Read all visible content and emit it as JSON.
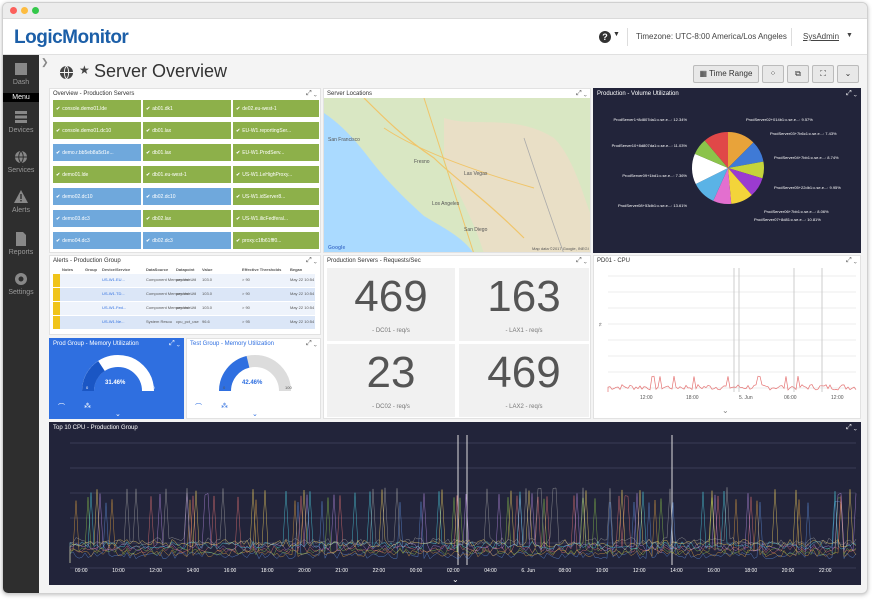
{
  "app": {
    "logo_part1": "Logic",
    "logo_part2": "Monitor",
    "timezone": "Timezone: UTC-8:00 America/Los Angeles",
    "user": "SysAdmin"
  },
  "sidebar": {
    "items": [
      {
        "label": "Dash",
        "icon": "dashboard-icon"
      },
      {
        "label": "Devices",
        "icon": "server-icon"
      },
      {
        "label": "Services",
        "icon": "globe-icon"
      },
      {
        "label": "Alerts",
        "icon": "warning-icon"
      },
      {
        "label": "Reports",
        "icon": "document-icon"
      },
      {
        "label": "Settings",
        "icon": "gear-icon"
      }
    ],
    "menu_label": "Menu"
  },
  "page": {
    "title": "Server Overview",
    "toolbar": {
      "time_range": "Time Range"
    }
  },
  "widgets": {
    "overview": {
      "title": "Overview - Production Servers",
      "rows": [
        [
          "console.demo01.lde",
          "ab01.dk1",
          "de02.eu-west-1"
        ],
        [
          "console.demo01.dc10",
          "db01.lax",
          "EU-W1.reportingSer..."
        ],
        [
          "demo.r.bb5eb8a5d1e...",
          "db01.lax",
          "EU-W1.ProdServ..."
        ],
        [
          "demo01.lde",
          "db01.eu-west-1",
          "US-W1.LeHighProxy..."
        ],
        [
          "demo02.dc10",
          "db02.dc10",
          "US-W1.idServer8..."
        ],
        [
          "demo03.dc3",
          "db02.lax",
          "US-W1.ilicFedferal..."
        ],
        [
          "demo04.dc3",
          "db02.dc3",
          "proxy.c1fb61fff0..."
        ]
      ]
    },
    "map": {
      "title": "Server Locations",
      "cities": [
        "San Francisco",
        "Fresno",
        "Las Vegas",
        "Los Angeles",
        "San Diego"
      ],
      "footer": "Map data ©2017 Google, INEGI",
      "brand": "Google"
    },
    "volume": {
      "title": "Production - Volume Utilization",
      "labels_left": [
        "ProdServer1+8d807da1:c.se.e...: 12.34%",
        "ProdServer10+8d807da1:c.se.e...: 11.03%",
        "ProdServer09+1bd1:c.se.e...: 7.36%",
        "ProdServer08+53db1:c.se.e...: 13.61%"
      ],
      "labels_right": [
        "ProdServer02+014b1:c.se.e...: 9.57%",
        "ProdServer03+7b6c1:c.se.e...: 7.43%",
        "ProdServer04+7bb1:c.se.e...: 8.74%",
        "ProdServer05+22db1:c.se.e...: 9.95%",
        "ProdServer06+7bb1:c.se.e...: 8.06%",
        "ProdServer07+8d81:c.se.e...: 10.81%"
      ],
      "slices": [
        {
          "value": 12.34,
          "color": "#e8a33a"
        },
        {
          "value": 9.57,
          "color": "#3f7ad6"
        },
        {
          "value": 7.43,
          "color": "#c5d43b"
        },
        {
          "value": 8.74,
          "color": "#9b3bd1"
        },
        {
          "value": 9.95,
          "color": "#f3d43a"
        },
        {
          "value": 8.06,
          "color": "#e36fcf"
        },
        {
          "value": 10.81,
          "color": "#5ab3e6"
        },
        {
          "value": 13.61,
          "color": "#ffffff"
        },
        {
          "value": 7.36,
          "color": "#8bc34a"
        },
        {
          "value": 11.03,
          "color": "#e04848"
        }
      ]
    },
    "alerts": {
      "title": "Alerts - Production Group",
      "columns": [
        "Notes",
        "Group",
        "Device/Service",
        "DataSource",
        "Datapoint",
        "Value",
        "Effective Thresholds",
        "Began"
      ],
      "rows": [
        [
          "",
          "",
          "US-W1.EU...",
          "Component Memory Use",
          "percent.Util",
          "103.0",
          "> 90",
          "May 22 10:54"
        ],
        [
          "",
          "",
          "US-W1.TD...",
          "Component Memory Use",
          "percent.Util",
          "103.0",
          "> 90",
          "May 22 10:54"
        ],
        [
          "",
          "",
          "US-W1.Fed...",
          "Component Memory Use",
          "percent.Util",
          "103.0",
          "> 90",
          "May 22 10:54"
        ],
        [
          "",
          "",
          "US-W1.Ne...",
          "System Resou",
          "cpu_pct_use",
          "96.6",
          "> 95",
          "May 22 10:54"
        ]
      ]
    },
    "requests": {
      "title": "Production Servers - Requests/Sec",
      "tiles": [
        {
          "value": "469",
          "label": "- DC01 - req/s"
        },
        {
          "value": "163",
          "label": "- LAX1 - req/s"
        },
        {
          "value": "23",
          "label": "- DC02 - req/s"
        },
        {
          "value": "469",
          "label": "- LAX2 - req/s"
        }
      ]
    },
    "pd01": {
      "title": "PD01 - CPU",
      "ticks": [
        "12:00",
        "18:00",
        "5. Jun",
        "06:00",
        "12:00"
      ]
    },
    "prodmem": {
      "title": "Prod Group - Memory Utilization",
      "value": "31.46%",
      "min": "0",
      "max": "100",
      "fraction": 0.3146
    },
    "testmem": {
      "title": "Test Group - Memory Utilization",
      "value": "42.46%",
      "min": "0",
      "max": "100",
      "fraction": 0.4246
    },
    "top10": {
      "title": "Top 10 CPU - Production Group",
      "ticks": [
        "09:00",
        "10:00",
        "12:00",
        "14:00",
        "16:00",
        "18:00",
        "20:00",
        "21:00",
        "22:00",
        "00:00",
        "02:00",
        "04:00",
        "6. Jun",
        "08:00",
        "10:00",
        "12:00",
        "14:00",
        "16:00",
        "18:00",
        "20:00",
        "22:00"
      ]
    }
  }
}
